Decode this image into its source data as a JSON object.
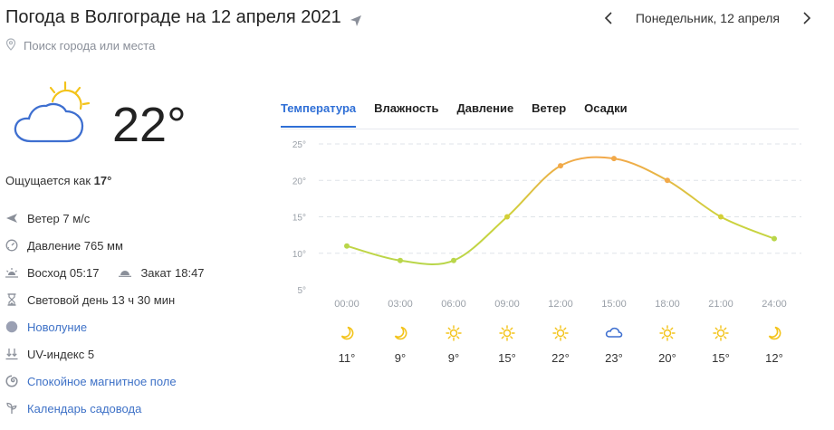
{
  "header": {
    "title": "Погода в Волгограде на 12 апреля 2021",
    "date_label": "Понедельник, 12 апреля"
  },
  "search": {
    "placeholder": "Поиск города или места"
  },
  "current": {
    "temp": "22°",
    "feels_prefix": "Ощущается как ",
    "feels_value": "17°"
  },
  "details": {
    "wind": "Ветер 7 м/с",
    "pressure": "Давление 765 мм",
    "sunrise": "Восход 05:17",
    "sunset": "Закат 18:47",
    "daylight": "Световой день 13 ч 30 мин",
    "moon": "Новолуние",
    "uv": "UV-индекс 5",
    "magnetic": "Спокойное магнитное поле",
    "garden": "Календарь садовода"
  },
  "tabs": [
    {
      "label": "Температура"
    },
    {
      "label": "Влажность"
    },
    {
      "label": "Давление"
    },
    {
      "label": "Ветер"
    },
    {
      "label": "Осадки"
    }
  ],
  "colors": {
    "accent": "#2f6fd6",
    "link": "#3f72c7",
    "curve_cool": "#b9d64a",
    "curve_warm": "#f2a94a",
    "sun": "#f3c31a",
    "cloud": "#3e6fd0"
  },
  "chart_data": {
    "type": "line",
    "x": [
      "00:00",
      "03:00",
      "06:00",
      "09:00",
      "12:00",
      "15:00",
      "18:00",
      "21:00",
      "24:00"
    ],
    "series": [
      {
        "values": [
          11,
          9,
          9,
          15,
          22,
          23,
          20,
          15,
          12
        ]
      }
    ],
    "y_ticks": [
      "25°",
      "20°",
      "15°",
      "10°",
      "5°"
    ],
    "ylim": [
      5,
      25
    ],
    "grid": true,
    "icons": [
      "moon-icon",
      "moon-icon",
      "sun-icon",
      "sun-icon",
      "sun-icon",
      "cloud-icon",
      "sun-icon",
      "sun-icon",
      "moon-icon"
    ],
    "temp_labels": [
      "11°",
      "9°",
      "9°",
      "15°",
      "22°",
      "23°",
      "20°",
      "15°",
      "12°"
    ]
  }
}
